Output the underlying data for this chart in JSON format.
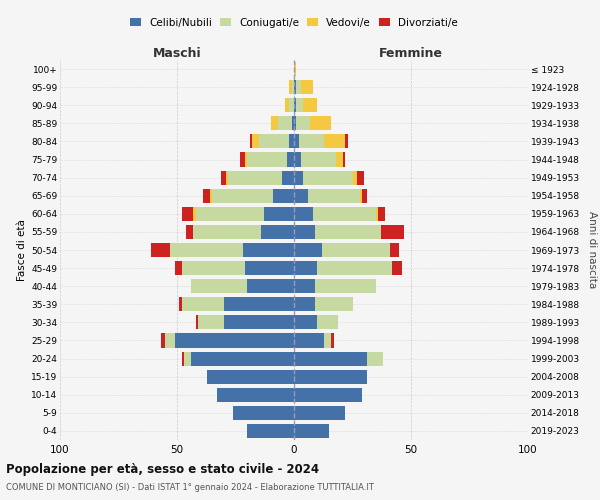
{
  "age_groups": [
    "0-4",
    "5-9",
    "10-14",
    "15-19",
    "20-24",
    "25-29",
    "30-34",
    "35-39",
    "40-44",
    "45-49",
    "50-54",
    "55-59",
    "60-64",
    "65-69",
    "70-74",
    "75-79",
    "80-84",
    "85-89",
    "90-94",
    "95-99",
    "100+"
  ],
  "birth_years": [
    "2019-2023",
    "2014-2018",
    "2009-2013",
    "2004-2008",
    "1999-2003",
    "1994-1998",
    "1989-1993",
    "1984-1988",
    "1979-1983",
    "1974-1978",
    "1969-1973",
    "1964-1968",
    "1959-1963",
    "1954-1958",
    "1949-1953",
    "1944-1948",
    "1939-1943",
    "1934-1938",
    "1929-1933",
    "1924-1928",
    "≤ 1923"
  ],
  "colors": {
    "celibi": "#4472a8",
    "coniugati": "#c5d9a0",
    "vedovi": "#f5c842",
    "divorziati": "#cc2222"
  },
  "legend_labels": [
    "Celibi/Nubili",
    "Coniugati/e",
    "Vedovi/e",
    "Divorziati/e"
  ],
  "title_main": "Popolazione per età, sesso e stato civile - 2024",
  "title_sub": "COMUNE DI MONTICIANO (SI) - Dati ISTAT 1° gennaio 2024 - Elaborazione TUTTITALIA.IT",
  "xlabel_left": "Maschi",
  "xlabel_right": "Femmine",
  "ylabel_left": "Fasce di età",
  "ylabel_right": "Anni di nascita",
  "xlim": 100,
  "males": {
    "celibi": [
      20,
      26,
      33,
      37,
      44,
      51,
      30,
      30,
      20,
      21,
      22,
      14,
      13,
      9,
      5,
      3,
      2,
      1,
      0,
      0,
      0
    ],
    "coniugati": [
      0,
      0,
      0,
      0,
      3,
      4,
      11,
      18,
      24,
      27,
      31,
      29,
      29,
      26,
      23,
      17,
      13,
      6,
      2,
      1,
      0
    ],
    "vedovi": [
      0,
      0,
      0,
      0,
      0,
      0,
      0,
      0,
      0,
      0,
      0,
      0,
      1,
      1,
      1,
      1,
      3,
      3,
      2,
      1,
      0
    ],
    "divorziati": [
      0,
      0,
      0,
      0,
      1,
      2,
      1,
      1,
      0,
      3,
      8,
      3,
      5,
      3,
      2,
      2,
      1,
      0,
      0,
      0,
      0
    ]
  },
  "females": {
    "nubili": [
      15,
      22,
      29,
      31,
      31,
      13,
      10,
      9,
      9,
      10,
      12,
      9,
      8,
      6,
      4,
      3,
      2,
      1,
      1,
      1,
      0
    ],
    "coniugate": [
      0,
      0,
      0,
      0,
      7,
      3,
      9,
      16,
      26,
      32,
      29,
      28,
      27,
      22,
      21,
      15,
      11,
      6,
      3,
      2,
      0
    ],
    "vedove": [
      0,
      0,
      0,
      0,
      0,
      0,
      0,
      0,
      0,
      0,
      0,
      0,
      1,
      1,
      2,
      3,
      9,
      9,
      6,
      5,
      1
    ],
    "divorziate": [
      0,
      0,
      0,
      0,
      0,
      1,
      0,
      0,
      0,
      4,
      4,
      10,
      3,
      2,
      3,
      1,
      1,
      0,
      0,
      0,
      0
    ]
  },
  "background_color": "#f5f5f5",
  "grid_color": "#cccccc"
}
